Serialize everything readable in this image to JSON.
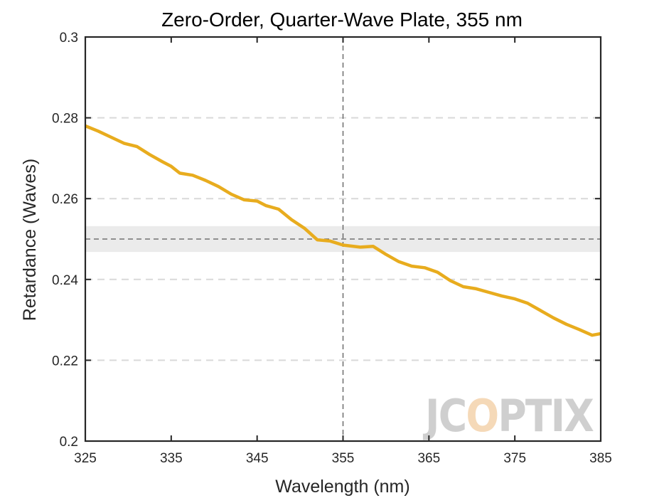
{
  "chart_data": {
    "type": "line",
    "title": "Zero-Order, Quarter-Wave Plate, 355 nm",
    "xlabel": "Wavelength (nm)",
    "ylabel": "Retardance (Waves)",
    "xlim": [
      325,
      385
    ],
    "ylim": [
      0.2,
      0.3
    ],
    "xticks": [
      325,
      335,
      345,
      355,
      365,
      375,
      385
    ],
    "xtick_labels": [
      "325",
      "335",
      "345",
      "355",
      "365",
      "375",
      "385"
    ],
    "yticks": [
      0.2,
      0.22,
      0.24,
      0.26,
      0.28,
      0.3
    ],
    "ytick_labels": [
      "0.2",
      "0.22",
      "0.24",
      "0.26",
      "0.28",
      "0.3"
    ],
    "grid": "y-dashed",
    "design_wavelength": 355,
    "target_retardance": 0.25,
    "tolerance_band": [
      0.2468,
      0.2532
    ],
    "series": [
      {
        "color": "#e8ac1e",
        "x": [
          325,
          326.5,
          328,
          329.5,
          331,
          332.5,
          334,
          335,
          336,
          337.5,
          339,
          340.5,
          342,
          343.5,
          345,
          346,
          347.5,
          349,
          350.5,
          352,
          353.5,
          355,
          357,
          358.5,
          360,
          361.5,
          363,
          364.5,
          366,
          367.5,
          369,
          370.5,
          372,
          373.5,
          375,
          376.5,
          378,
          379.5,
          381,
          382.5,
          384,
          385
        ],
        "y": [
          0.278,
          0.2767,
          0.2752,
          0.2737,
          0.2729,
          0.2709,
          0.2691,
          0.268,
          0.2663,
          0.2658,
          0.2645,
          0.263,
          0.2611,
          0.2597,
          0.2594,
          0.2583,
          0.2574,
          0.2548,
          0.2527,
          0.2498,
          0.2495,
          0.2485,
          0.248,
          0.2482,
          0.2462,
          0.2444,
          0.2433,
          0.2429,
          0.2418,
          0.2397,
          0.2382,
          0.2377,
          0.2368,
          0.2359,
          0.2352,
          0.2341,
          0.2323,
          0.2305,
          0.2289,
          0.2276,
          0.2262,
          0.2266
        ]
      }
    ],
    "colors": {
      "series": "#e8ac1e",
      "band": "#ebebeb",
      "reference_line": "#5a5a5a",
      "grid": "#d9d9d9"
    }
  },
  "logo": {
    "text": "JCOPTIX",
    "colors": {
      "main": "#cfcfcf",
      "accent": "#f5d9b8"
    }
  }
}
